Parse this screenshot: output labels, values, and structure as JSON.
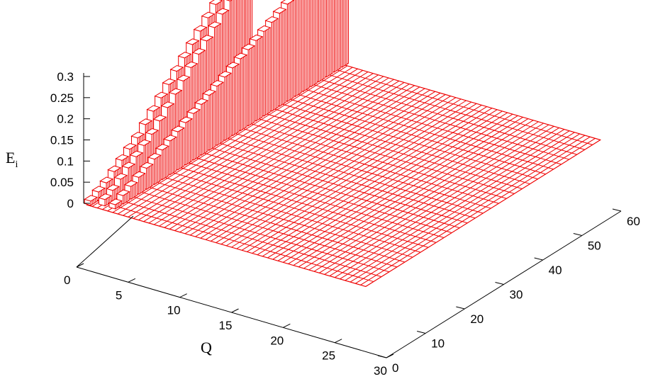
{
  "chart_data": {
    "type": "3d-bar",
    "xlabel": "Q",
    "ylabel": "",
    "zlabel": "E",
    "zlabel_sub": "i",
    "x_ticks": [
      "0",
      "5",
      "10",
      "15",
      "20",
      "25",
      "30"
    ],
    "y_ticks": [
      "0",
      "10",
      "20",
      "30",
      "40",
      "50",
      "60"
    ],
    "z_ticks": [
      "0",
      "0.05",
      "0.1",
      "0.15",
      "0.2",
      "0.25",
      "0.3"
    ],
    "xlim": [
      0,
      30
    ],
    "ylim": [
      0,
      60
    ],
    "zlim": [
      0,
      0.3
    ],
    "color": "#ee0000",
    "ridges": [
      {
        "name": "",
        "points": [
          {
            "Q": 1,
            "i": 1,
            "E": 0.01
          },
          {
            "Q": 1,
            "i": 3,
            "E": 0.02
          },
          {
            "Q": 1,
            "i": 5,
            "E": 0.03
          },
          {
            "Q": 1,
            "i": 7,
            "E": 0.045
          },
          {
            "Q": 1,
            "i": 9,
            "E": 0.06
          },
          {
            "Q": 1,
            "i": 11,
            "E": 0.075
          },
          {
            "Q": 1,
            "i": 13,
            "E": 0.09
          },
          {
            "Q": 1,
            "i": 15,
            "E": 0.11
          },
          {
            "Q": 1,
            "i": 17,
            "E": 0.13
          },
          {
            "Q": 1,
            "i": 19,
            "E": 0.15
          },
          {
            "Q": 1,
            "i": 21,
            "E": 0.17
          },
          {
            "Q": 1,
            "i": 23,
            "E": 0.19
          },
          {
            "Q": 1,
            "i": 25,
            "E": 0.21
          },
          {
            "Q": 1,
            "i": 27,
            "E": 0.23
          },
          {
            "Q": 1,
            "i": 29,
            "E": 0.25
          },
          {
            "Q": 1,
            "i": 31,
            "E": 0.27
          },
          {
            "Q": 1,
            "i": 33,
            "E": 0.29
          },
          {
            "Q": 1,
            "i": 35,
            "E": 0.31
          },
          {
            "Q": 1,
            "i": 37,
            "E": 0.33
          }
        ]
      },
      {
        "name": "",
        "points": [
          {
            "Q": 2,
            "i": 2,
            "E": 0.015
          },
          {
            "Q": 2,
            "i": 4,
            "E": 0.025
          },
          {
            "Q": 2,
            "i": 6,
            "E": 0.04
          },
          {
            "Q": 2,
            "i": 8,
            "E": 0.055
          },
          {
            "Q": 2,
            "i": 10,
            "E": 0.07
          },
          {
            "Q": 2,
            "i": 12,
            "E": 0.085
          },
          {
            "Q": 2,
            "i": 14,
            "E": 0.1
          },
          {
            "Q": 2,
            "i": 16,
            "E": 0.12
          },
          {
            "Q": 2,
            "i": 18,
            "E": 0.14
          },
          {
            "Q": 2,
            "i": 20,
            "E": 0.16
          },
          {
            "Q": 2,
            "i": 22,
            "E": 0.18
          },
          {
            "Q": 2,
            "i": 24,
            "E": 0.2
          },
          {
            "Q": 2,
            "i": 26,
            "E": 0.22
          },
          {
            "Q": 2,
            "i": 28,
            "E": 0.24
          },
          {
            "Q": 2,
            "i": 30,
            "E": 0.26
          },
          {
            "Q": 2,
            "i": 32,
            "E": 0.28
          },
          {
            "Q": 2,
            "i": 34,
            "E": 0.3
          },
          {
            "Q": 2,
            "i": 36,
            "E": 0.32
          },
          {
            "Q": 2,
            "i": 38,
            "E": 0.34
          }
        ]
      },
      {
        "name": "",
        "points": [
          {
            "Q": 3,
            "i": 2,
            "E": 0.01
          },
          {
            "Q": 3,
            "i": 4,
            "E": 0.02
          },
          {
            "Q": 3,
            "i": 6,
            "E": 0.03
          },
          {
            "Q": 3,
            "i": 8,
            "E": 0.04
          },
          {
            "Q": 3,
            "i": 10,
            "E": 0.05
          },
          {
            "Q": 3,
            "i": 12,
            "E": 0.06
          },
          {
            "Q": 3,
            "i": 14,
            "E": 0.07
          },
          {
            "Q": 3,
            "i": 16,
            "E": 0.08
          },
          {
            "Q": 3,
            "i": 18,
            "E": 0.09
          },
          {
            "Q": 3,
            "i": 20,
            "E": 0.1
          },
          {
            "Q": 3,
            "i": 22,
            "E": 0.11
          },
          {
            "Q": 3,
            "i": 24,
            "E": 0.12
          },
          {
            "Q": 3,
            "i": 26,
            "E": 0.13
          },
          {
            "Q": 3,
            "i": 28,
            "E": 0.14
          },
          {
            "Q": 3,
            "i": 30,
            "E": 0.15
          },
          {
            "Q": 3,
            "i": 32,
            "E": 0.16
          },
          {
            "Q": 3,
            "i": 34,
            "E": 0.17
          },
          {
            "Q": 3,
            "i": 36,
            "E": 0.18
          },
          {
            "Q": 3,
            "i": 38,
            "E": 0.19
          },
          {
            "Q": 3,
            "i": 40,
            "E": 0.2
          },
          {
            "Q": 3,
            "i": 42,
            "E": 0.21
          },
          {
            "Q": 3,
            "i": 44,
            "E": 0.22
          },
          {
            "Q": 3,
            "i": 46,
            "E": 0.23
          },
          {
            "Q": 3,
            "i": 48,
            "E": 0.24
          },
          {
            "Q": 3,
            "i": 50,
            "E": 0.25
          },
          {
            "Q": 3,
            "i": 52,
            "E": 0.26
          },
          {
            "Q": 3,
            "i": 54,
            "E": 0.27
          },
          {
            "Q": 3,
            "i": 56,
            "E": 0.28
          },
          {
            "Q": 3,
            "i": 58,
            "E": 0.29
          },
          {
            "Q": 3,
            "i": 60,
            "E": 0.3
          }
        ]
      }
    ]
  }
}
